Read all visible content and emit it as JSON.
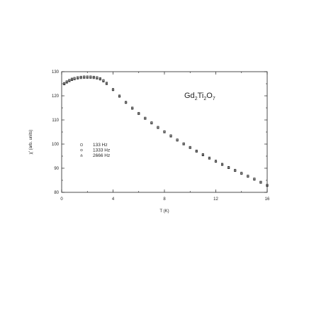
{
  "chart_data": {
    "type": "scatter",
    "title": "",
    "compound_label": {
      "parts": [
        {
          "text": "Gd",
          "sub": false
        },
        {
          "text": "2",
          "sub": true
        },
        {
          "text": "Ti",
          "sub": false
        },
        {
          "text": "2",
          "sub": true
        },
        {
          "text": "O",
          "sub": false
        },
        {
          "text": "7",
          "sub": true
        }
      ]
    },
    "xlabel": "T (K)",
    "ylabel": "χ' (arb. units)",
    "xlim": [
      0,
      16
    ],
    "ylim": [
      80,
      130
    ],
    "x_ticks": [
      0,
      4,
      8,
      12,
      16
    ],
    "y_ticks": [
      80,
      90,
      100,
      110,
      120,
      130
    ],
    "grid": false,
    "legend_position": "center-left",
    "series": [
      {
        "name": "133 Hz",
        "marker": "square",
        "x": [
          0.2,
          0.4,
          0.6,
          0.8,
          1.0,
          1.25,
          1.5,
          1.75,
          2.0,
          2.25,
          2.5,
          2.75,
          3.0,
          3.25,
          3.5,
          4.0,
          4.5,
          5.0,
          5.5,
          6.0,
          6.5,
          7.0,
          7.5,
          8.0,
          8.5,
          9.0,
          9.5,
          10.0,
          10.5,
          11.0,
          11.5,
          12.0,
          12.5,
          13.0,
          13.5,
          14.0,
          14.5,
          15.0,
          15.5,
          16.0
        ],
        "y": [
          125.2,
          125.9,
          126.5,
          127.0,
          127.3,
          127.6,
          127.8,
          127.9,
          127.9,
          127.9,
          127.8,
          127.6,
          127.2,
          126.4,
          125.3,
          122.7,
          120.0,
          117.4,
          115.0,
          112.8,
          110.8,
          108.9,
          107.0,
          105.2,
          103.5,
          101.8,
          100.2,
          98.7,
          97.2,
          95.7,
          94.3,
          93.0,
          91.7,
          90.4,
          89.2,
          88.0,
          86.8,
          85.6,
          84.3,
          83.0
        ]
      },
      {
        "name": "1333 Hz",
        "marker": "circle",
        "x": [
          0.2,
          0.4,
          0.6,
          0.8,
          1.0,
          1.25,
          1.5,
          1.75,
          2.0,
          2.25,
          2.5,
          2.75,
          3.0,
          3.25,
          3.5,
          4.0,
          4.5,
          5.0,
          5.5,
          6.0,
          6.5,
          7.0,
          7.5,
          8.0,
          8.5,
          9.0,
          9.5,
          10.0,
          10.5,
          11.0,
          11.5,
          12.0,
          12.5,
          13.0,
          13.5,
          14.0,
          14.5,
          15.0,
          15.5,
          16.0
        ],
        "y": [
          125.0,
          125.7,
          126.3,
          126.8,
          127.1,
          127.4,
          127.6,
          127.7,
          127.7,
          127.7,
          127.6,
          127.4,
          127.0,
          126.2,
          125.1,
          122.6,
          119.9,
          117.3,
          114.9,
          112.7,
          110.7,
          108.8,
          106.9,
          105.1,
          103.4,
          101.7,
          100.1,
          98.6,
          97.1,
          95.6,
          94.2,
          92.9,
          91.6,
          90.3,
          89.1,
          87.9,
          86.7,
          85.5,
          84.2,
          82.9
        ]
      },
      {
        "name": "2666 Hz",
        "marker": "triangle",
        "x": [
          0.2,
          0.4,
          0.6,
          0.8,
          1.0,
          1.25,
          1.5,
          1.75,
          2.0,
          2.25,
          2.5,
          2.75,
          3.0,
          3.25,
          3.5,
          4.0,
          4.5,
          5.0,
          5.5,
          6.0,
          6.5,
          7.0,
          7.5,
          8.0,
          8.5,
          9.0,
          9.5,
          10.0,
          10.5,
          11.0,
          11.5,
          12.0,
          12.5,
          13.0,
          13.5,
          14.0,
          14.5,
          15.0,
          15.5,
          16.0
        ],
        "y": [
          124.8,
          125.5,
          126.1,
          126.6,
          126.9,
          127.2,
          127.4,
          127.5,
          127.5,
          127.5,
          127.4,
          127.2,
          126.8,
          126.0,
          124.9,
          122.4,
          119.7,
          117.1,
          114.7,
          112.5,
          110.5,
          108.6,
          106.7,
          104.9,
          103.2,
          101.5,
          99.9,
          98.4,
          96.9,
          95.4,
          94.0,
          92.7,
          91.4,
          90.1,
          88.9,
          87.7,
          86.5,
          85.3,
          84.0,
          82.7
        ]
      }
    ]
  }
}
